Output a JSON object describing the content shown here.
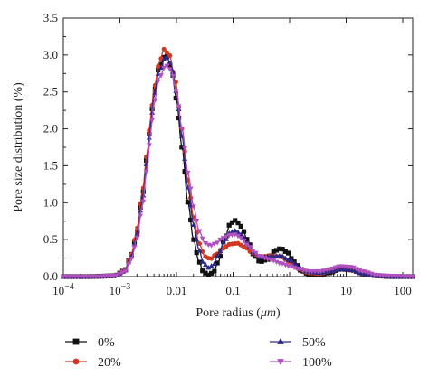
{
  "chart_data": {
    "type": "line",
    "xlabel_prefix": "Pore radius (",
    "xlabel_unit": "μm",
    "xlabel_suffix": ")",
    "ylabel": "Pore size distribution (%)",
    "xscale": "log",
    "xlim": [
      0.0001,
      150
    ],
    "ylim": [
      0,
      3.5
    ],
    "x_ticks": [
      {
        "value": 0.0001,
        "base": "10",
        "exp": "−4"
      },
      {
        "value": 0.001,
        "base": "10",
        "exp": "−3"
      },
      {
        "value": 0.01,
        "label": "0.01"
      },
      {
        "value": 0.1,
        "label": "0.1"
      },
      {
        "value": 1,
        "label": "1"
      },
      {
        "value": 10,
        "label": "10"
      },
      {
        "value": 100,
        "label": "100"
      }
    ],
    "y_ticks": [
      "0.0",
      "0.5",
      "1.0",
      "1.5",
      "2.0",
      "2.5",
      "3.0",
      "3.5"
    ],
    "legend_placement": "bottom",
    "series": [
      {
        "name": "0%",
        "color": "#111111",
        "marker": "square",
        "points": [
          [
            0.0001,
            0
          ],
          [
            0.0003,
            0
          ],
          [
            0.0008,
            0.01
          ],
          [
            0.0012,
            0.08
          ],
          [
            0.0016,
            0.3
          ],
          [
            0.002,
            0.6
          ],
          [
            0.0025,
            1.1
          ],
          [
            0.003,
            1.6
          ],
          [
            0.0035,
            2.1
          ],
          [
            0.004,
            2.5
          ],
          [
            0.005,
            2.85
          ],
          [
            0.0065,
            3.0
          ],
          [
            0.008,
            2.85
          ],
          [
            0.01,
            2.4
          ],
          [
            0.0125,
            1.75
          ],
          [
            0.016,
            1.0
          ],
          [
            0.02,
            0.5
          ],
          [
            0.025,
            0.2
          ],
          [
            0.03,
            0.06
          ],
          [
            0.037,
            0.02
          ],
          [
            0.045,
            0.06
          ],
          [
            0.055,
            0.2
          ],
          [
            0.07,
            0.5
          ],
          [
            0.09,
            0.72
          ],
          [
            0.11,
            0.76
          ],
          [
            0.14,
            0.68
          ],
          [
            0.18,
            0.5
          ],
          [
            0.23,
            0.3
          ],
          [
            0.3,
            0.2
          ],
          [
            0.4,
            0.23
          ],
          [
            0.55,
            0.35
          ],
          [
            0.7,
            0.38
          ],
          [
            0.9,
            0.33
          ],
          [
            1.2,
            0.2
          ],
          [
            1.6,
            0.08
          ],
          [
            2.2,
            0.03
          ],
          [
            3,
            0.02
          ],
          [
            5,
            0.05
          ],
          [
            8,
            0.1
          ],
          [
            12,
            0.09
          ],
          [
            20,
            0.04
          ],
          [
            35,
            0.01
          ],
          [
            60,
            0
          ],
          [
            150,
            0
          ]
        ]
      },
      {
        "name": "20%",
        "color": "#d03a22",
        "marker": "circle",
        "points": [
          [
            0.0001,
            0
          ],
          [
            0.0003,
            0
          ],
          [
            0.0008,
            0.01
          ],
          [
            0.0012,
            0.08
          ],
          [
            0.0016,
            0.3
          ],
          [
            0.002,
            0.65
          ],
          [
            0.0025,
            1.15
          ],
          [
            0.003,
            1.65
          ],
          [
            0.0035,
            2.15
          ],
          [
            0.004,
            2.55
          ],
          [
            0.005,
            2.9
          ],
          [
            0.006,
            3.08
          ],
          [
            0.0075,
            3.0
          ],
          [
            0.0095,
            2.65
          ],
          [
            0.0125,
            2.0
          ],
          [
            0.016,
            1.3
          ],
          [
            0.02,
            0.8
          ],
          [
            0.025,
            0.45
          ],
          [
            0.032,
            0.27
          ],
          [
            0.04,
            0.24
          ],
          [
            0.05,
            0.3
          ],
          [
            0.065,
            0.38
          ],
          [
            0.09,
            0.44
          ],
          [
            0.12,
            0.45
          ],
          [
            0.16,
            0.4
          ],
          [
            0.22,
            0.32
          ],
          [
            0.3,
            0.27
          ],
          [
            0.45,
            0.28
          ],
          [
            0.7,
            0.27
          ],
          [
            1,
            0.2
          ],
          [
            1.5,
            0.1
          ],
          [
            2.2,
            0.05
          ],
          [
            3.5,
            0.04
          ],
          [
            5,
            0.07
          ],
          [
            8,
            0.1
          ],
          [
            12,
            0.09
          ],
          [
            20,
            0.04
          ],
          [
            35,
            0.01
          ],
          [
            60,
            0
          ],
          [
            150,
            0
          ]
        ]
      },
      {
        "name": "50%",
        "color": "#2a2a86",
        "marker": "triangle-up",
        "points": [
          [
            0.0001,
            0
          ],
          [
            0.0003,
            0
          ],
          [
            0.0008,
            0.01
          ],
          [
            0.0012,
            0.07
          ],
          [
            0.0016,
            0.27
          ],
          [
            0.002,
            0.57
          ],
          [
            0.0025,
            1.05
          ],
          [
            0.003,
            1.55
          ],
          [
            0.0035,
            2.05
          ],
          [
            0.004,
            2.45
          ],
          [
            0.005,
            2.8
          ],
          [
            0.0065,
            2.98
          ],
          [
            0.008,
            2.88
          ],
          [
            0.01,
            2.5
          ],
          [
            0.0125,
            1.9
          ],
          [
            0.016,
            1.2
          ],
          [
            0.02,
            0.7
          ],
          [
            0.025,
            0.36
          ],
          [
            0.03,
            0.18
          ],
          [
            0.037,
            0.12
          ],
          [
            0.045,
            0.16
          ],
          [
            0.055,
            0.3
          ],
          [
            0.07,
            0.48
          ],
          [
            0.09,
            0.6
          ],
          [
            0.11,
            0.62
          ],
          [
            0.14,
            0.57
          ],
          [
            0.18,
            0.45
          ],
          [
            0.23,
            0.33
          ],
          [
            0.3,
            0.26
          ],
          [
            0.45,
            0.27
          ],
          [
            0.7,
            0.28
          ],
          [
            1,
            0.22
          ],
          [
            1.5,
            0.12
          ],
          [
            2.2,
            0.06
          ],
          [
            3.5,
            0.05
          ],
          [
            5,
            0.07
          ],
          [
            8,
            0.1
          ],
          [
            12,
            0.09
          ],
          [
            20,
            0.04
          ],
          [
            35,
            0.01
          ],
          [
            60,
            0
          ],
          [
            150,
            0
          ]
        ]
      },
      {
        "name": "100%",
        "color": "#b050c0",
        "marker": "triangle-down",
        "points": [
          [
            0.0001,
            0
          ],
          [
            0.0003,
            0
          ],
          [
            0.0008,
            0.01
          ],
          [
            0.0012,
            0.06
          ],
          [
            0.0016,
            0.24
          ],
          [
            0.002,
            0.52
          ],
          [
            0.0025,
            0.97
          ],
          [
            0.003,
            1.45
          ],
          [
            0.0035,
            1.95
          ],
          [
            0.004,
            2.35
          ],
          [
            0.005,
            2.7
          ],
          [
            0.0065,
            2.86
          ],
          [
            0.008,
            2.8
          ],
          [
            0.01,
            2.5
          ],
          [
            0.0125,
            2.0
          ],
          [
            0.016,
            1.4
          ],
          [
            0.02,
            0.95
          ],
          [
            0.025,
            0.62
          ],
          [
            0.032,
            0.45
          ],
          [
            0.04,
            0.42
          ],
          [
            0.05,
            0.45
          ],
          [
            0.065,
            0.52
          ],
          [
            0.085,
            0.56
          ],
          [
            0.11,
            0.57
          ],
          [
            0.14,
            0.52
          ],
          [
            0.18,
            0.43
          ],
          [
            0.23,
            0.34
          ],
          [
            0.3,
            0.27
          ],
          [
            0.45,
            0.23
          ],
          [
            0.7,
            0.18
          ],
          [
            1,
            0.14
          ],
          [
            1.5,
            0.1
          ],
          [
            2.2,
            0.07
          ],
          [
            3.5,
            0.07
          ],
          [
            5,
            0.1
          ],
          [
            8,
            0.14
          ],
          [
            12,
            0.13
          ],
          [
            20,
            0.07
          ],
          [
            35,
            0.02
          ],
          [
            60,
            0.01
          ],
          [
            150,
            0
          ]
        ]
      }
    ]
  }
}
